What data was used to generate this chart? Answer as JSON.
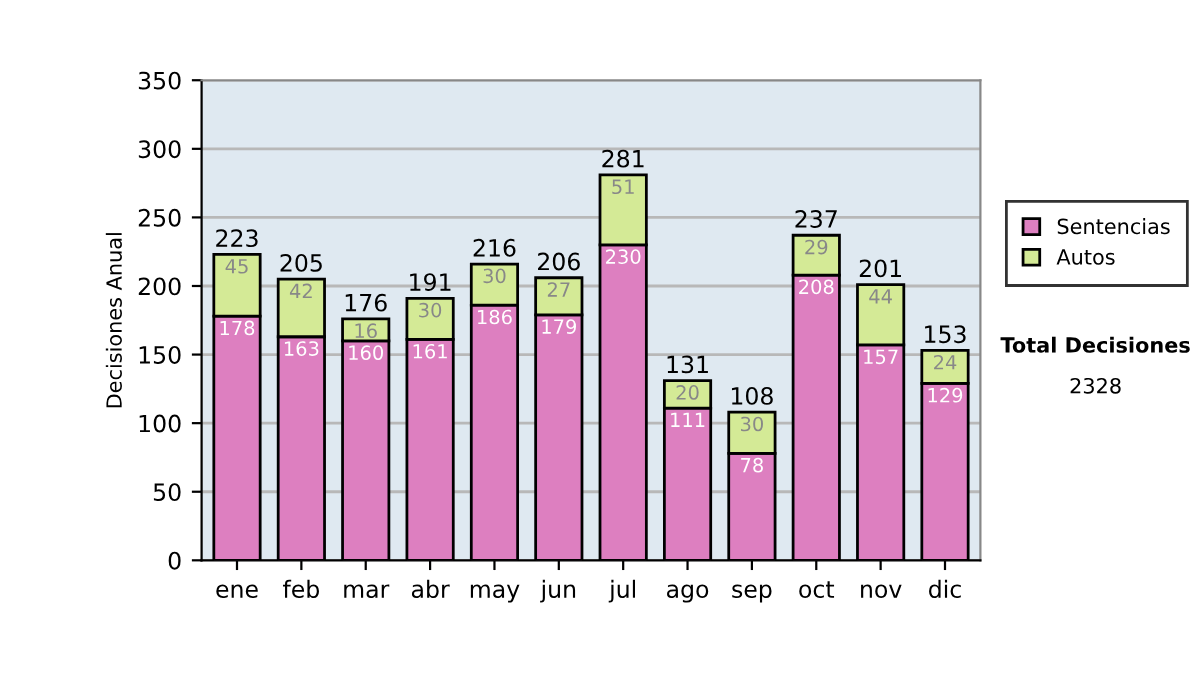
{
  "chart_data": {
    "type": "bar",
    "stacked": true,
    "ylabel": "Decisiones Anual",
    "categories": [
      "ene",
      "feb",
      "mar",
      "abr",
      "may",
      "jun",
      "jul",
      "ago",
      "sep",
      "oct",
      "nov",
      "dic"
    ],
    "series": [
      {
        "name": "Sentencias",
        "color": "#dd7fc0",
        "values": [
          178,
          163,
          160,
          161,
          186,
          179,
          230,
          111,
          78,
          208,
          157,
          129
        ]
      },
      {
        "name": "Autos",
        "color": "#d4ea96",
        "values": [
          45,
          42,
          16,
          30,
          30,
          27,
          51,
          20,
          30,
          29,
          44,
          24
        ]
      }
    ],
    "totals": [
      "223",
      "205",
      "176",
      "191",
      "216",
      "206",
      "281",
      "131",
      "108",
      "237",
      "201",
      "153"
    ],
    "data_labels": true,
    "ylim": [
      0,
      350
    ],
    "yticks": [
      0,
      50,
      100,
      150,
      200,
      250,
      300,
      350
    ],
    "grid": "y",
    "legend": "right",
    "annotations": [
      "Total Decisiones",
      "2328"
    ]
  }
}
